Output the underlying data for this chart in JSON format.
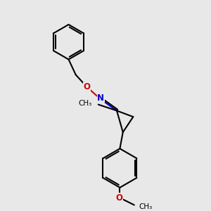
{
  "bg_color": "#e8e8e8",
  "bond_color": "#000000",
  "N_color": "#0000cc",
  "O_color": "#cc0000",
  "lw": 1.5,
  "figsize": [
    3.0,
    3.0
  ],
  "dpi": 100,
  "xlim": [
    1.5,
    8.5
  ],
  "ylim": [
    0.5,
    10.5
  ]
}
